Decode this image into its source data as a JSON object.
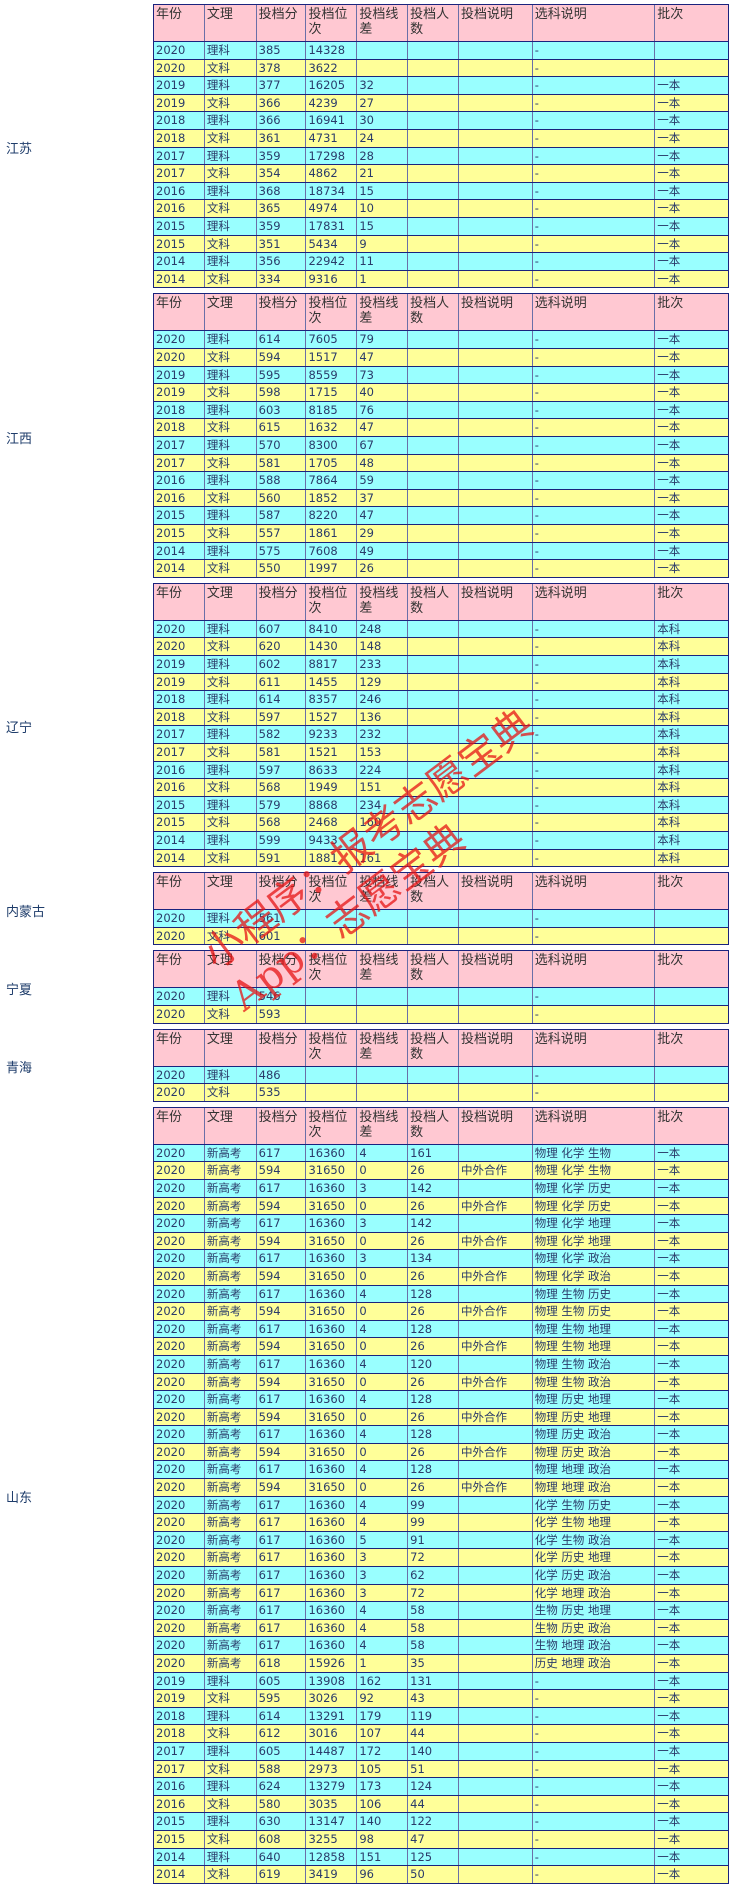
{
  "watermark": [
    "小程序：报考志愿宝典",
    "App：志愿宝典"
  ],
  "sections": [
    {
      "province": "江苏",
      "header": [
        "年份",
        "文理",
        "投档分",
        "投档位次",
        "投档线差",
        "投档人数",
        "投档说明",
        "选科说明",
        "批次"
      ],
      "rows": [
        [
          "2020",
          "理科",
          385,
          14328,
          null,
          null,
          null,
          "-",
          null
        ],
        [
          "2020",
          "文科",
          378,
          3622,
          null,
          null,
          null,
          "-",
          null
        ],
        [
          "2019",
          "理科",
          377,
          16205,
          32,
          null,
          null,
          "-",
          "一本"
        ],
        [
          "2019",
          "文科",
          366,
          4239,
          27,
          null,
          null,
          "-",
          "一本"
        ],
        [
          "2018",
          "理科",
          366,
          16941,
          30,
          null,
          null,
          "-",
          "一本"
        ],
        [
          "2018",
          "文科",
          361,
          4731,
          24,
          null,
          null,
          "-",
          "一本"
        ],
        [
          "2017",
          "理科",
          359,
          17298,
          28,
          null,
          null,
          "-",
          "一本"
        ],
        [
          "2017",
          "文科",
          354,
          4862,
          21,
          null,
          null,
          "-",
          "一本"
        ],
        [
          "2016",
          "理科",
          368,
          18734,
          15,
          null,
          null,
          "-",
          "一本"
        ],
        [
          "2016",
          "文科",
          365,
          4974,
          10,
          null,
          null,
          "-",
          "一本"
        ],
        [
          "2015",
          "理科",
          359,
          17831,
          15,
          null,
          null,
          "-",
          "一本"
        ],
        [
          "2015",
          "文科",
          351,
          5434,
          9,
          null,
          null,
          "-",
          "一本"
        ],
        [
          "2014",
          "理科",
          356,
          22942,
          11,
          null,
          null,
          "-",
          "一本"
        ],
        [
          "2014",
          "文科",
          334,
          9316,
          1,
          null,
          null,
          "-",
          "一本"
        ]
      ]
    },
    {
      "province": "江西",
      "header": [
        "年份",
        "文理",
        "投档分",
        "投档位次",
        "投档线差",
        "投档人数",
        "投档说明",
        "选科说明",
        "批次"
      ],
      "rows": [
        [
          "2020",
          "理科",
          614,
          7605,
          79,
          null,
          null,
          "-",
          "一本"
        ],
        [
          "2020",
          "文科",
          594,
          1517,
          47,
          null,
          null,
          "-",
          "一本"
        ],
        [
          "2019",
          "理科",
          595,
          8559,
          73,
          null,
          null,
          "-",
          "一本"
        ],
        [
          "2019",
          "文科",
          598,
          1715,
          40,
          null,
          null,
          "-",
          "一本"
        ],
        [
          "2018",
          "理科",
          603,
          8185,
          76,
          null,
          null,
          "-",
          "一本"
        ],
        [
          "2018",
          "文科",
          615,
          1632,
          47,
          null,
          null,
          "-",
          "一本"
        ],
        [
          "2017",
          "理科",
          570,
          8300,
          67,
          null,
          null,
          "-",
          "一本"
        ],
        [
          "2017",
          "文科",
          581,
          1705,
          48,
          null,
          null,
          "-",
          "一本"
        ],
        [
          "2016",
          "理科",
          588,
          7864,
          59,
          null,
          null,
          "-",
          "一本"
        ],
        [
          "2016",
          "文科",
          560,
          1852,
          37,
          null,
          null,
          "-",
          "一本"
        ],
        [
          "2015",
          "理科",
          587,
          8220,
          47,
          null,
          null,
          "-",
          "一本"
        ],
        [
          "2015",
          "文科",
          557,
          1861,
          29,
          null,
          null,
          "-",
          "一本"
        ],
        [
          "2014",
          "理科",
          575,
          7608,
          49,
          null,
          null,
          "-",
          "一本"
        ],
        [
          "2014",
          "文科",
          550,
          1997,
          26,
          null,
          null,
          "-",
          "一本"
        ]
      ]
    },
    {
      "province": "辽宁",
      "header": [
        "年份",
        "文理",
        "投档分",
        "投档位次",
        "投档线差",
        "投档人数",
        "投档说明",
        "选科说明",
        "批次"
      ],
      "rows": [
        [
          "2020",
          "理科",
          607,
          8410,
          248,
          null,
          null,
          "-",
          "本科"
        ],
        [
          "2020",
          "文科",
          620,
          1430,
          148,
          null,
          null,
          "-",
          "本科"
        ],
        [
          "2019",
          "理科",
          602,
          8817,
          233,
          null,
          null,
          "-",
          "本科"
        ],
        [
          "2019",
          "文科",
          611,
          1455,
          129,
          null,
          null,
          "-",
          "本科"
        ],
        [
          "2018",
          "理科",
          614,
          8357,
          246,
          null,
          null,
          "-",
          "本科"
        ],
        [
          "2018",
          "文科",
          597,
          1527,
          136,
          null,
          null,
          "-",
          "本科"
        ],
        [
          "2017",
          "理科",
          582,
          9233,
          232,
          null,
          null,
          "-",
          "本科"
        ],
        [
          "2017",
          "文科",
          581,
          1521,
          153,
          null,
          null,
          "-",
          "本科"
        ],
        [
          "2016",
          "理科",
          597,
          8633,
          224,
          null,
          null,
          "-",
          "本科"
        ],
        [
          "2016",
          "文科",
          568,
          1949,
          151,
          null,
          null,
          "-",
          "本科"
        ],
        [
          "2015",
          "理科",
          579,
          8868,
          234,
          null,
          null,
          "-",
          "本科"
        ],
        [
          "2015",
          "文科",
          568,
          2468,
          160,
          null,
          null,
          "-",
          "本科"
        ],
        [
          "2014",
          "理科",
          599,
          9433,
          null,
          null,
          null,
          "-",
          "本科"
        ],
        [
          "2014",
          "文科",
          591,
          1881,
          161,
          null,
          null,
          "-",
          "本科"
        ]
      ]
    },
    {
      "province": "内蒙古",
      "header": [
        "年份",
        "文理",
        "投档分",
        "投档位次",
        "投档线差",
        "投档人数",
        "投档说明",
        "选科说明",
        "批次"
      ],
      "rows": [
        [
          "2020",
          "理科",
          561,
          null,
          null,
          null,
          null,
          "-",
          null
        ],
        [
          "2020",
          "文科",
          601,
          null,
          null,
          null,
          null,
          "-",
          null
        ]
      ]
    },
    {
      "province": "宁夏",
      "header": [
        "年份",
        "文理",
        "投档分",
        "投档位次",
        "投档线差",
        "投档人数",
        "投档说明",
        "选科说明",
        "批次"
      ],
      "rows": [
        [
          "2020",
          "理科",
          546,
          null,
          null,
          null,
          null,
          "-",
          null
        ],
        [
          "2020",
          "文科",
          593,
          null,
          null,
          null,
          null,
          "-",
          null
        ]
      ]
    },
    {
      "province": "青海",
      "header": [
        "年份",
        "文理",
        "投档分",
        "投档位次",
        "投档线差",
        "投档人数",
        "投档说明",
        "选科说明",
        "批次"
      ],
      "rows": [
        [
          "2020",
          "理科",
          486,
          null,
          null,
          null,
          null,
          "-",
          null
        ],
        [
          "2020",
          "文科",
          535,
          null,
          null,
          null,
          null,
          "-",
          null
        ]
      ]
    },
    {
      "province": "山东",
      "header": [
        "年份",
        "文理",
        "投档分",
        "投档位次",
        "投档线差",
        "投档人数",
        "投档说明",
        "选科说明",
        "批次"
      ],
      "rows": [
        [
          "2020",
          "新高考",
          617,
          16360,
          4,
          161,
          null,
          "物理 化学 生物",
          "一本"
        ],
        [
          "2020",
          "新高考",
          594,
          31650,
          0,
          26,
          "中外合作",
          "物理 化学 生物",
          "一本"
        ],
        [
          "2020",
          "新高考",
          617,
          16360,
          3,
          142,
          null,
          "物理 化学 历史",
          "一本"
        ],
        [
          "2020",
          "新高考",
          594,
          31650,
          0,
          26,
          "中外合作",
          "物理 化学 历史",
          "一本"
        ],
        [
          "2020",
          "新高考",
          617,
          16360,
          3,
          142,
          null,
          "物理 化学 地理",
          "一本"
        ],
        [
          "2020",
          "新高考",
          594,
          31650,
          0,
          26,
          "中外合作",
          "物理 化学 地理",
          "一本"
        ],
        [
          "2020",
          "新高考",
          617,
          16360,
          3,
          134,
          null,
          "物理 化学 政治",
          "一本"
        ],
        [
          "2020",
          "新高考",
          594,
          31650,
          0,
          26,
          "中外合作",
          "物理 化学 政治",
          "一本"
        ],
        [
          "2020",
          "新高考",
          617,
          16360,
          4,
          128,
          null,
          "物理 生物 历史",
          "一本"
        ],
        [
          "2020",
          "新高考",
          594,
          31650,
          0,
          26,
          "中外合作",
          "物理 生物 历史",
          "一本"
        ],
        [
          "2020",
          "新高考",
          617,
          16360,
          4,
          128,
          null,
          "物理 生物 地理",
          "一本"
        ],
        [
          "2020",
          "新高考",
          594,
          31650,
          0,
          26,
          "中外合作",
          "物理 生物 地理",
          "一本"
        ],
        [
          "2020",
          "新高考",
          617,
          16360,
          4,
          120,
          null,
          "物理 生物 政治",
          "一本"
        ],
        [
          "2020",
          "新高考",
          594,
          31650,
          0,
          26,
          "中外合作",
          "物理 生物 政治",
          "一本"
        ],
        [
          "2020",
          "新高考",
          617,
          16360,
          4,
          128,
          null,
          "物理 历史 地理",
          "一本"
        ],
        [
          "2020",
          "新高考",
          594,
          31650,
          0,
          26,
          "中外合作",
          "物理 历史 地理",
          "一本"
        ],
        [
          "2020",
          "新高考",
          617,
          16360,
          4,
          128,
          null,
          "物理 历史 政治",
          "一本"
        ],
        [
          "2020",
          "新高考",
          594,
          31650,
          0,
          26,
          "中外合作",
          "物理 历史 政治",
          "一本"
        ],
        [
          "2020",
          "新高考",
          617,
          16360,
          4,
          128,
          null,
          "物理 地理 政治",
          "一本"
        ],
        [
          "2020",
          "新高考",
          594,
          31650,
          0,
          26,
          "中外合作",
          "物理 地理 政治",
          "一本"
        ],
        [
          "2020",
          "新高考",
          617,
          16360,
          4,
          99,
          null,
          "化学 生物 历史",
          "一本"
        ],
        [
          "2020",
          "新高考",
          617,
          16360,
          4,
          99,
          null,
          "化学 生物 地理",
          "一本"
        ],
        [
          "2020",
          "新高考",
          617,
          16360,
          5,
          91,
          null,
          "化学 生物 政治",
          "一本"
        ],
        [
          "2020",
          "新高考",
          617,
          16360,
          3,
          72,
          null,
          "化学 历史 地理",
          "一本"
        ],
        [
          "2020",
          "新高考",
          617,
          16360,
          3,
          62,
          null,
          "化学 历史 政治",
          "一本"
        ],
        [
          "2020",
          "新高考",
          617,
          16360,
          3,
          72,
          null,
          "化学 地理 政治",
          "一本"
        ],
        [
          "2020",
          "新高考",
          617,
          16360,
          4,
          58,
          null,
          "生物 历史 地理",
          "一本"
        ],
        [
          "2020",
          "新高考",
          617,
          16360,
          4,
          58,
          null,
          "生物 历史 政治",
          "一本"
        ],
        [
          "2020",
          "新高考",
          617,
          16360,
          4,
          58,
          null,
          "生物 地理 政治",
          "一本"
        ],
        [
          "2020",
          "新高考",
          618,
          15926,
          1,
          35,
          null,
          "历史 地理 政治",
          "一本"
        ],
        [
          "2019",
          "理科",
          605,
          13908,
          162,
          131,
          null,
          "-",
          "一本"
        ],
        [
          "2019",
          "文科",
          595,
          3026,
          92,
          43,
          null,
          "-",
          "一本"
        ],
        [
          "2018",
          "理科",
          614,
          13291,
          179,
          119,
          null,
          "-",
          "一本"
        ],
        [
          "2018",
          "文科",
          612,
          3016,
          107,
          44,
          null,
          "-",
          "一本"
        ],
        [
          "2017",
          "理科",
          605,
          14487,
          172,
          140,
          null,
          "-",
          "一本"
        ],
        [
          "2017",
          "文科",
          588,
          2973,
          105,
          51,
          null,
          "-",
          "一本"
        ],
        [
          "2016",
          "理科",
          624,
          13279,
          173,
          124,
          null,
          "-",
          "一本"
        ],
        [
          "2016",
          "文科",
          580,
          3035,
          106,
          44,
          null,
          "-",
          "一本"
        ],
        [
          "2015",
          "理科",
          630,
          13147,
          140,
          122,
          null,
          "-",
          "一本"
        ],
        [
          "2015",
          "文科",
          608,
          3255,
          98,
          47,
          null,
          "-",
          "一本"
        ],
        [
          "2014",
          "理科",
          640,
          12858,
          151,
          125,
          null,
          "-",
          "一本"
        ],
        [
          "2014",
          "文科",
          619,
          3419,
          96,
          50,
          null,
          "-",
          "一本"
        ]
      ]
    }
  ]
}
